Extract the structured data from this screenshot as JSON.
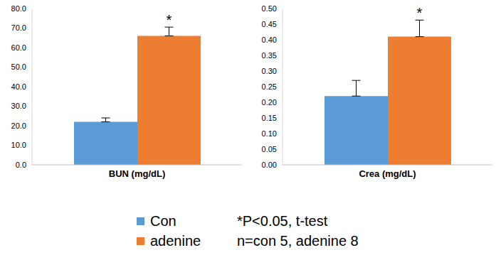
{
  "chart_data": [
    {
      "type": "bar",
      "categories": [
        "BUN (mg/dL)"
      ],
      "series": [
        {
          "name": "Con",
          "color": "#5b9bd5",
          "values": [
            22.0
          ],
          "error": [
            2.0
          ]
        },
        {
          "name": "adenine",
          "color": "#ed7d31",
          "values": [
            66.0
          ],
          "error": [
            4.5
          ],
          "annotation": "*"
        }
      ],
      "ylim": [
        0,
        80
      ],
      "yticks": [
        {
          "value": 0,
          "label": "0.0"
        },
        {
          "value": 10,
          "label": "10.0"
        },
        {
          "value": 20,
          "label": "20.0"
        },
        {
          "value": 30,
          "label": "30.0"
        },
        {
          "value": 40,
          "label": "40.0"
        },
        {
          "value": 50,
          "label": "50.0"
        },
        {
          "value": 60,
          "label": "60.0"
        },
        {
          "value": 70,
          "label": "70.0"
        },
        {
          "value": 80,
          "label": "80.0"
        }
      ],
      "legend": "bottom"
    },
    {
      "type": "bar",
      "categories": [
        "Crea (mg/dL)"
      ],
      "series": [
        {
          "name": "Con",
          "color": "#5b9bd5",
          "values": [
            0.22
          ],
          "error": [
            0.05
          ]
        },
        {
          "name": "adenine",
          "color": "#ed7d31",
          "values": [
            0.41
          ],
          "error": [
            0.053
          ],
          "annotation": "*"
        }
      ],
      "ylim": [
        0,
        0.5
      ],
      "yticks": [
        {
          "value": 0,
          "label": "0.00"
        },
        {
          "value": 0.05,
          "label": "0.05"
        },
        {
          "value": 0.1,
          "label": "0.10"
        },
        {
          "value": 0.15,
          "label": "0.15"
        },
        {
          "value": 0.2,
          "label": "0.20"
        },
        {
          "value": 0.25,
          "label": "0.25"
        },
        {
          "value": 0.3,
          "label": "0.30"
        },
        {
          "value": 0.35,
          "label": "0.35"
        },
        {
          "value": 0.4,
          "label": "0.40"
        },
        {
          "value": 0.45,
          "label": "0.45"
        },
        {
          "value": 0.5,
          "label": "0.50"
        }
      ],
      "legend": "bottom"
    }
  ],
  "notes": [
    "*P<0.05, t-test",
    "n=con 5, adenine 8"
  ]
}
